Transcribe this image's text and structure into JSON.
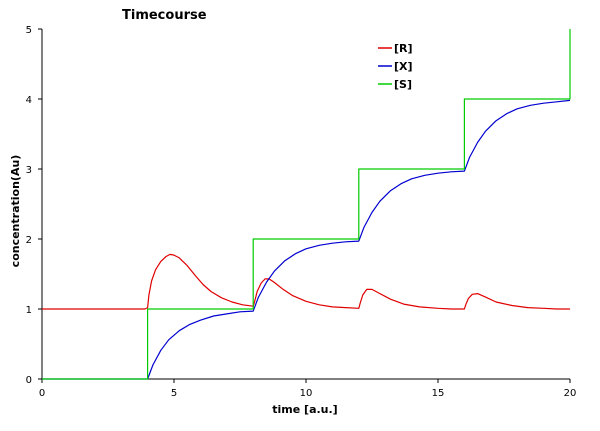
{
  "chart_data": {
    "type": "line",
    "title": "Timecourse",
    "xlabel": "time [a.u.]",
    "ylabel": "concentration(Au)",
    "xlim": [
      0,
      20
    ],
    "ylim": [
      0,
      5
    ],
    "x_ticks": [
      "0",
      "5",
      "10",
      "15",
      "20"
    ],
    "y_ticks": [
      "0",
      "1",
      "2",
      "3",
      "4",
      "5"
    ],
    "grid": false,
    "legend_position": "top-center",
    "series": [
      {
        "name": "[R]",
        "color": "#e00000",
        "x": [
          0,
          3.9,
          4.0,
          4.05,
          4.15,
          4.3,
          4.5,
          4.7,
          4.85,
          5.0,
          5.2,
          5.5,
          5.8,
          6.1,
          6.4,
          6.8,
          7.2,
          7.6,
          8.0,
          8.05,
          8.15,
          8.3,
          8.45,
          8.6,
          8.8,
          9.1,
          9.5,
          10.0,
          10.5,
          11.0,
          11.5,
          12.0,
          12.05,
          12.15,
          12.3,
          12.5,
          12.8,
          13.2,
          13.7,
          14.3,
          15.0,
          15.5,
          16.0,
          16.05,
          16.15,
          16.3,
          16.5,
          16.8,
          17.2,
          17.8,
          18.4,
          19.0,
          19.5,
          20.0
        ],
        "values": [
          1.0,
          1.0,
          1.02,
          1.2,
          1.4,
          1.56,
          1.68,
          1.75,
          1.78,
          1.77,
          1.73,
          1.62,
          1.48,
          1.35,
          1.25,
          1.16,
          1.1,
          1.06,
          1.04,
          1.1,
          1.25,
          1.37,
          1.43,
          1.43,
          1.38,
          1.29,
          1.19,
          1.11,
          1.06,
          1.03,
          1.02,
          1.01,
          1.08,
          1.2,
          1.28,
          1.28,
          1.22,
          1.14,
          1.07,
          1.03,
          1.01,
          1.0,
          1.0,
          1.06,
          1.15,
          1.21,
          1.22,
          1.17,
          1.1,
          1.05,
          1.02,
          1.01,
          1.0,
          1.0
        ]
      },
      {
        "name": "[X]",
        "color": "#0000d0",
        "x": [
          0,
          3.9,
          4.0,
          4.2,
          4.5,
          4.8,
          5.2,
          5.6,
          6.0,
          6.5,
          7.0,
          7.5,
          8.0,
          8.2,
          8.5,
          8.8,
          9.2,
          9.6,
          10.0,
          10.5,
          11.0,
          11.5,
          12.0,
          12.2,
          12.5,
          12.8,
          13.2,
          13.6,
          14.0,
          14.5,
          15.0,
          15.5,
          16.0,
          16.2,
          16.5,
          16.8,
          17.2,
          17.6,
          18.0,
          18.5,
          19.0,
          19.5,
          20.0
        ],
        "values": [
          0.0,
          0.0,
          0.0,
          0.2,
          0.41,
          0.56,
          0.69,
          0.78,
          0.84,
          0.9,
          0.93,
          0.96,
          0.97,
          1.17,
          1.38,
          1.54,
          1.69,
          1.79,
          1.86,
          1.91,
          1.94,
          1.96,
          1.97,
          2.17,
          2.38,
          2.54,
          2.69,
          2.79,
          2.86,
          2.91,
          2.94,
          2.96,
          2.97,
          3.17,
          3.38,
          3.54,
          3.69,
          3.79,
          3.86,
          3.91,
          3.94,
          3.96,
          3.98
        ]
      },
      {
        "name": "[S]",
        "color": "#00cc00",
        "x": [
          0,
          4.0,
          4.0,
          8.0,
          8.0,
          12.0,
          12.0,
          16.0,
          16.0,
          20.0,
          20.0
        ],
        "values": [
          0,
          0,
          1,
          1,
          2,
          2,
          3,
          3,
          4,
          4,
          5
        ]
      }
    ]
  }
}
